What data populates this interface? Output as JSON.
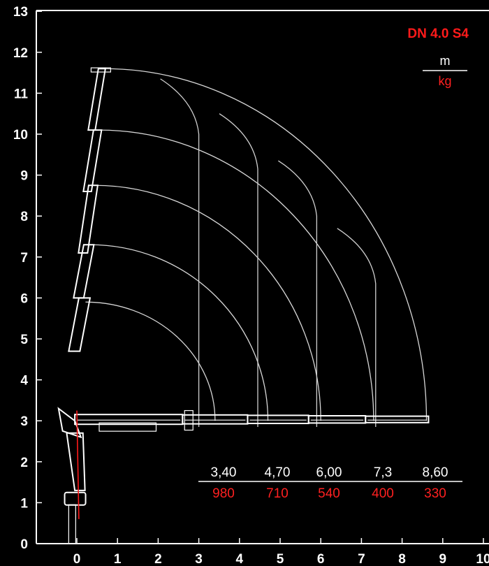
{
  "chart_data": {
    "type": "load-chart",
    "title": "DN 4.0 S4",
    "unit_top": "m",
    "unit_bottom": "kg",
    "x_ticks": [
      "0",
      "1",
      "2",
      "3",
      "4",
      "5",
      "6",
      "7",
      "8",
      "9",
      "10"
    ],
    "y_ticks": [
      "0",
      "1",
      "2",
      "3",
      "4",
      "5",
      "6",
      "7",
      "8",
      "9",
      "10",
      "11",
      "12",
      "13"
    ],
    "xlim": [
      -1,
      10
    ],
    "ylim": [
      0,
      13
    ],
    "reach_labels": [
      "3,40",
      "4,70",
      "6,00",
      "7,3",
      "8,60"
    ],
    "load_labels": [
      "980",
      "710",
      "540",
      "400",
      "330"
    ],
    "reach_m": [
      3.4,
      4.7,
      6.0,
      7.3,
      8.6
    ],
    "load_kg": [
      980,
      710,
      540,
      400,
      330
    ],
    "pivot": [
      0.1,
      3.0
    ],
    "vertical_boom_tips_y": [
      5.9,
      7.3,
      8.75,
      10.1,
      11.6
    ]
  },
  "colors": {
    "background": "#000000",
    "axis": "#ffffff",
    "curves": "#d8d8d8",
    "highlight": "#ff1a1a"
  }
}
